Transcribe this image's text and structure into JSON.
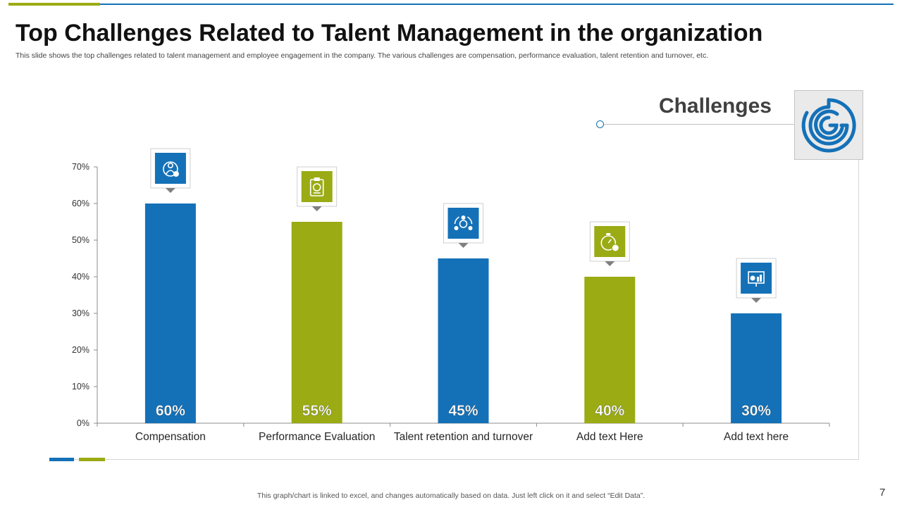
{
  "slide": {
    "title": "Top Challenges Related to Talent Management in the organization",
    "subtitle": "This slide shows the top challenges related to talent management and employee engagement in the company. The various challenges are compensation, performance evaluation, talent retention and turnover, etc.",
    "header_label": "Challenges",
    "footer": "This graph/chart is linked to excel,  and changes automatically based on data. Just left click on it and select “Edit Data”.",
    "page_number": "7"
  },
  "colors": {
    "blue": "#1471b8",
    "green": "#9aab14"
  },
  "chart_data": {
    "type": "bar",
    "title": "",
    "xlabel": "",
    "ylabel": "",
    "categories": [
      "Compensation",
      "Performance Evaluation",
      "Talent retention and turnover",
      "Add text Here",
      "Add text here"
    ],
    "values": [
      60,
      55,
      45,
      40,
      30
    ],
    "value_labels": [
      "60%",
      "55%",
      "45%",
      "40%",
      "30%"
    ],
    "bar_colors": [
      "#1471b8",
      "#9aab14",
      "#1471b8",
      "#9aab14",
      "#1471b8"
    ],
    "icons": [
      "compensation-icon",
      "evaluation-clipboard-icon",
      "team-cycle-icon",
      "stopwatch-money-icon",
      "presentation-chart-icon"
    ],
    "ylim": [
      0,
      70
    ],
    "yticks": [
      "0%",
      "10%",
      "20%",
      "30%",
      "40%",
      "50%",
      "60%",
      "70%"
    ],
    "ytick_values": [
      0,
      10,
      20,
      30,
      40,
      50,
      60,
      70
    ],
    "grid": false,
    "legend": "none"
  }
}
